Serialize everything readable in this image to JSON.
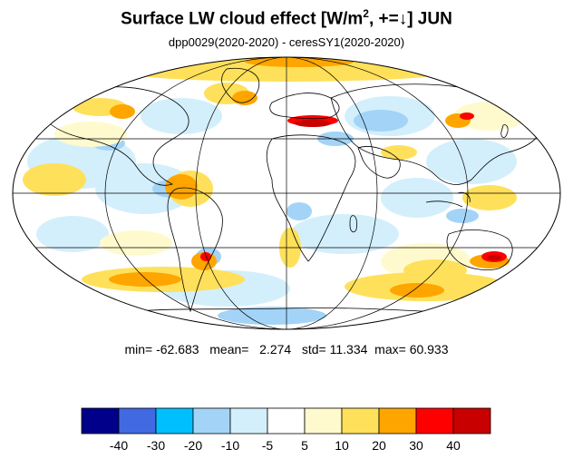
{
  "title": {
    "main": "Surface LW cloud effect [W/m",
    "sup": "2",
    "tail": ", +=↓]  JUN"
  },
  "subtitle": "dpp0029(2020-2020) - ceresSY1(2020-2020)",
  "stats": {
    "min_label": "min=",
    "min": "-62.683",
    "mean_label": "mean=",
    "mean": "2.274",
    "std_label": "std=",
    "std": "11.334",
    "max_label": "max=",
    "max": "60.933"
  },
  "colorbar": {
    "colors": [
      "#00008b",
      "#4169e1",
      "#00bfff",
      "#a3d4f7",
      "#d3effc",
      "#ffffff",
      "#fffacd",
      "#ffe05a",
      "#ffa500",
      "#ff0000",
      "#c80000"
    ],
    "tick_labels": [
      "-40",
      "-30",
      "-20",
      "-10",
      "-5",
      "5",
      "10",
      "20",
      "30",
      "40"
    ]
  },
  "map_colors": {
    "ocean_base": "#ffffff",
    "land_outline": "#000000",
    "grid": "#000000"
  }
}
